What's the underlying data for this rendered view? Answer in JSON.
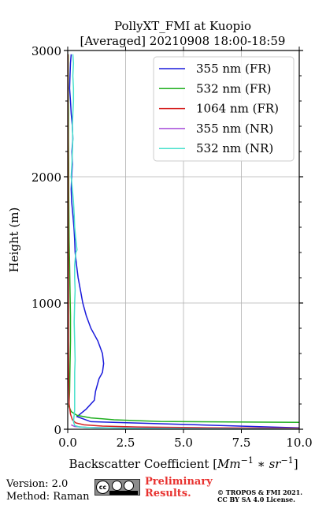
{
  "chart_data": {
    "type": "line",
    "title_line1": "PollyXT_FMI at Kuopio",
    "title_line2": "[Averaged] 20210908 18:00-18:59",
    "xlabel": "Backscatter Coefficient [",
    "xlabel_math": "Mm",
    "xlabel_unit_sup1": "−1",
    "xlabel_mid": " ∗ ",
    "xlabel_unit2": "sr",
    "xlabel_unit_sup2": "−1",
    "xlabel_close": "]",
    "ylabel": "Height (m)",
    "xlim": [
      0,
      10
    ],
    "ylim": [
      0,
      3000
    ],
    "x_ticks": [
      0,
      2.5,
      5,
      7.5,
      10
    ],
    "x_tick_labels": [
      "0.0",
      "2.5",
      "5.0",
      "7.5",
      "10.0"
    ],
    "y_ticks": [
      0,
      1000,
      2000,
      3000
    ],
    "y_tick_labels": [
      "0",
      "1000",
      "2000",
      "3000"
    ],
    "grid": true,
    "legend_position": "top-right",
    "series": [
      {
        "name": "355 nm (FR)",
        "color": "#1a1adb",
        "points": [
          [
            12,
            0
          ],
          [
            1.0,
            60
          ],
          [
            0.4,
            100
          ],
          [
            0.8,
            160
          ],
          [
            1.15,
            230
          ],
          [
            1.2,
            300
          ],
          [
            1.35,
            400
          ],
          [
            1.5,
            450
          ],
          [
            1.55,
            520
          ],
          [
            1.5,
            600
          ],
          [
            1.3,
            700
          ],
          [
            1.0,
            800
          ],
          [
            0.8,
            900
          ],
          [
            0.65,
            1000
          ],
          [
            0.55,
            1100
          ],
          [
            0.45,
            1200
          ],
          [
            0.38,
            1300
          ],
          [
            0.32,
            1400
          ],
          [
            0.3,
            1500
          ],
          [
            0.27,
            1600
          ],
          [
            0.22,
            1700
          ],
          [
            0.17,
            1800
          ],
          [
            0.15,
            1900
          ],
          [
            0.17,
            2000
          ],
          [
            0.2,
            2100
          ],
          [
            0.18,
            2200
          ],
          [
            0.22,
            2300
          ],
          [
            0.2,
            2400
          ],
          [
            0.15,
            2500
          ],
          [
            0.12,
            2600
          ],
          [
            0.08,
            2700
          ],
          [
            0.1,
            2800
          ],
          [
            0.12,
            2900
          ],
          [
            0.15,
            2970
          ]
        ]
      },
      {
        "name": "532 nm (FR)",
        "color": "#1fae1f",
        "points": [
          [
            10.0,
            55
          ],
          [
            7.0,
            58
          ],
          [
            4.0,
            62
          ],
          [
            3.0,
            68
          ],
          [
            2.0,
            75
          ],
          [
            1.0,
            90
          ],
          [
            0.4,
            110
          ],
          [
            0.15,
            140
          ],
          [
            0.05,
            180
          ],
          [
            0.08,
            300
          ],
          [
            0.1,
            500
          ],
          [
            0.12,
            700
          ],
          [
            0.12,
            900
          ],
          [
            0.1,
            1100
          ],
          [
            0.08,
            1300
          ],
          [
            0.06,
            1500
          ],
          [
            0.05,
            1700
          ],
          [
            0.04,
            1900
          ],
          [
            0.04,
            2100
          ],
          [
            0.03,
            2300
          ],
          [
            0.03,
            2500
          ],
          [
            0.02,
            2700
          ],
          [
            0.02,
            2900
          ],
          [
            0.02,
            2970
          ]
        ]
      },
      {
        "name": "1064 nm (FR)",
        "color": "#d62222",
        "points": [
          [
            10.0,
            8
          ],
          [
            6.0,
            12
          ],
          [
            3.0,
            18
          ],
          [
            1.5,
            25
          ],
          [
            0.7,
            35
          ],
          [
            0.35,
            50
          ],
          [
            0.2,
            75
          ],
          [
            0.12,
            120
          ],
          [
            0.06,
            200
          ],
          [
            0.04,
            400
          ],
          [
            0.03,
            700
          ],
          [
            0.03,
            1000
          ],
          [
            0.03,
            1300
          ],
          [
            0.02,
            1600
          ],
          [
            0.02,
            1800
          ],
          [
            0.02,
            2000
          ],
          [
            0.01,
            2500
          ],
          [
            0.01,
            2970
          ]
        ]
      },
      {
        "name": "355 nm (NR)",
        "color": "#a64dd9",
        "points": [
          [
            10.0,
            3
          ],
          [
            5.0,
            6
          ],
          [
            2.0,
            10
          ],
          [
            0.8,
            15
          ],
          [
            0.3,
            22
          ],
          [
            0.15,
            35
          ]
        ]
      },
      {
        "name": "532 nm (NR)",
        "color": "#48e0cc",
        "points": [
          [
            10.0,
            2
          ],
          [
            6.0,
            4
          ],
          [
            3.0,
            7
          ],
          [
            1.2,
            12
          ],
          [
            0.5,
            18
          ],
          [
            0.3,
            30
          ],
          [
            0.25,
            60
          ],
          [
            0.3,
            150
          ],
          [
            0.3,
            300
          ],
          [
            0.3,
            450
          ],
          [
            0.32,
            550
          ],
          [
            0.3,
            700
          ],
          [
            0.28,
            850
          ],
          [
            0.3,
            1000
          ],
          [
            0.32,
            1100
          ],
          [
            0.3,
            1200
          ],
          [
            0.3,
            1300
          ],
          [
            0.35,
            1400
          ],
          [
            0.4,
            1420
          ],
          [
            0.38,
            1450
          ],
          [
            0.35,
            1500
          ],
          [
            0.3,
            1600
          ],
          [
            0.28,
            1700
          ],
          [
            0.25,
            1800
          ],
          [
            0.2,
            1900
          ],
          [
            0.15,
            2000
          ],
          [
            0.18,
            2100
          ],
          [
            0.2,
            2200
          ],
          [
            0.22,
            2300
          ],
          [
            0.2,
            2400
          ],
          [
            0.22,
            2500
          ],
          [
            0.25,
            2600
          ],
          [
            0.25,
            2700
          ],
          [
            0.22,
            2800
          ],
          [
            0.25,
            2900
          ],
          [
            0.22,
            2970
          ]
        ]
      }
    ]
  },
  "footer": {
    "version": "Version: 2.0",
    "method": "Method: Raman",
    "preliminary_line1": "Preliminary",
    "preliminary_line2": "Results.",
    "license_line1": "© TROPOS & FMI 2021.",
    "license_line2": "CC BY SA 4.0 License."
  },
  "logo": {
    "text": "cc"
  }
}
